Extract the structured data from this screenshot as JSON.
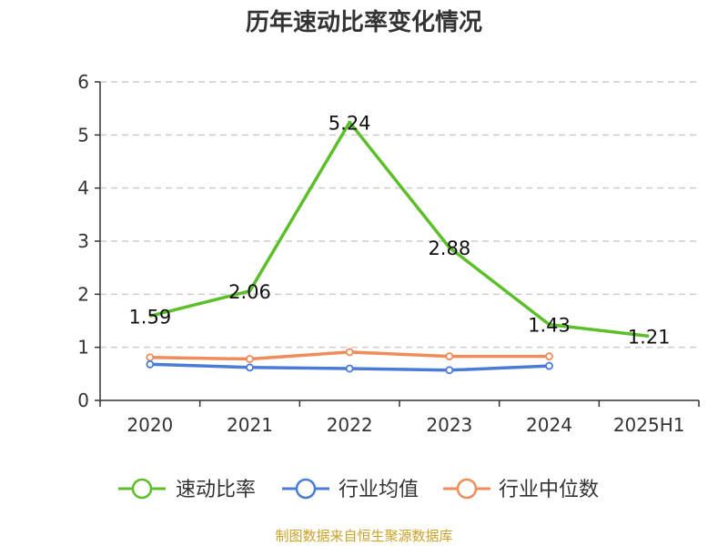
{
  "chart_data": {
    "type": "line",
    "title": "历年速动比率变化情况",
    "categories": [
      "2020",
      "2021",
      "2022",
      "2023",
      "2024",
      "2025H1"
    ],
    "ylim": [
      0,
      6
    ],
    "yticks": [
      0,
      1,
      2,
      3,
      4,
      5,
      6
    ],
    "grid": true,
    "legend_position": "bottom",
    "series": [
      {
        "name": "速动比率",
        "color": "#5cbf2a",
        "values": [
          1.59,
          2.06,
          5.24,
          2.88,
          1.43,
          1.21
        ],
        "labels": [
          "1.59",
          "2.06",
          "5.24",
          "2.88",
          "1.43",
          "1.21"
        ]
      },
      {
        "name": "行业均值",
        "color": "#4a7bd6",
        "values": [
          0.68,
          0.62,
          0.6,
          0.57,
          0.65,
          null
        ]
      },
      {
        "name": "行业中位数",
        "color": "#f08c5a",
        "values": [
          0.81,
          0.78,
          0.91,
          0.83,
          0.83,
          null
        ]
      }
    ]
  },
  "source": "制图数据来自恒生聚源数据库"
}
